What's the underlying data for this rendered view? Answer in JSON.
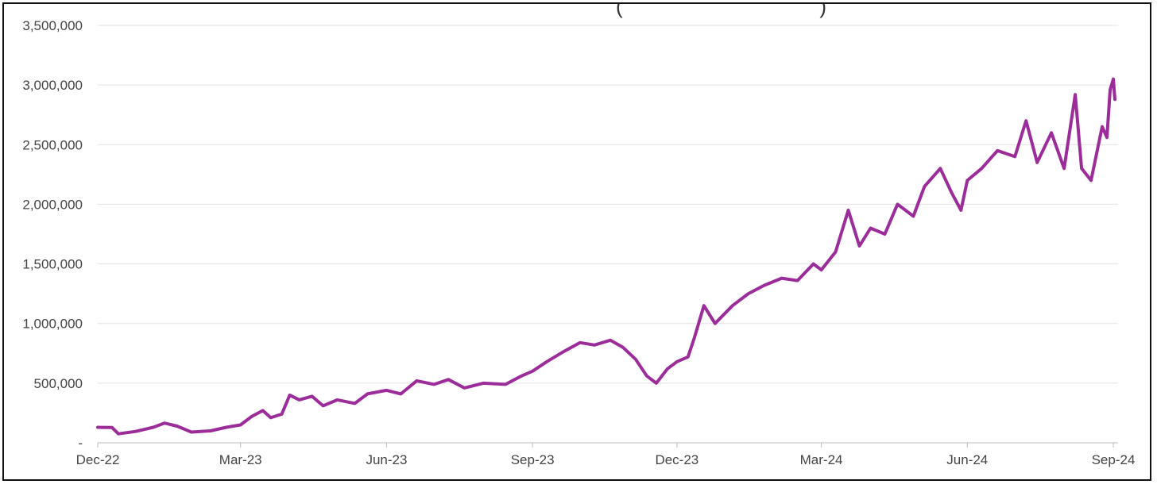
{
  "chart_data": {
    "type": "line",
    "title": "",
    "title_fragment": "(                              )",
    "xlabel": "",
    "ylabel": "",
    "ylim": [
      0,
      3500000
    ],
    "grid": true,
    "legend": "none",
    "line_color": "#9B2C9A",
    "y_ticks": [
      {
        "value": 3500000,
        "label": "3,500,000"
      },
      {
        "value": 3000000,
        "label": "3,000,000"
      },
      {
        "value": 2500000,
        "label": "2,500,000"
      },
      {
        "value": 2000000,
        "label": "2,000,000"
      },
      {
        "value": 1500000,
        "label": "1,500,000"
      },
      {
        "value": 1000000,
        "label": "1,000,000"
      },
      {
        "value": 500000,
        "label": "500,000"
      },
      {
        "value": 0,
        "label": "-"
      }
    ],
    "x_ticks": [
      {
        "date": "2022-12-01",
        "label": "Dec-22"
      },
      {
        "date": "2023-03-01",
        "label": "Mar-23"
      },
      {
        "date": "2023-06-01",
        "label": "Jun-23"
      },
      {
        "date": "2023-09-01",
        "label": "Sep-23"
      },
      {
        "date": "2023-12-01",
        "label": "Dec-23"
      },
      {
        "date": "2024-03-01",
        "label": "Mar-24"
      },
      {
        "date": "2024-06-01",
        "label": "Jun-24"
      },
      {
        "date": "2024-09-01",
        "label": "Sep-24"
      }
    ],
    "series": [
      {
        "points": [
          [
            "2022-12-01",
            130000
          ],
          [
            "2022-12-10",
            128000
          ],
          [
            "2022-12-14",
            75000
          ],
          [
            "2022-12-25",
            95000
          ],
          [
            "2023-01-05",
            130000
          ],
          [
            "2023-01-12",
            165000
          ],
          [
            "2023-01-20",
            140000
          ],
          [
            "2023-01-29",
            90000
          ],
          [
            "2023-02-10",
            100000
          ],
          [
            "2023-02-20",
            130000
          ],
          [
            "2023-03-01",
            150000
          ],
          [
            "2023-03-08",
            220000
          ],
          [
            "2023-03-15",
            270000
          ],
          [
            "2023-03-20",
            210000
          ],
          [
            "2023-03-27",
            240000
          ],
          [
            "2023-04-01",
            400000
          ],
          [
            "2023-04-07",
            360000
          ],
          [
            "2023-04-15",
            390000
          ],
          [
            "2023-04-22",
            310000
          ],
          [
            "2023-05-01",
            360000
          ],
          [
            "2023-05-12",
            330000
          ],
          [
            "2023-05-20",
            410000
          ],
          [
            "2023-06-01",
            440000
          ],
          [
            "2023-06-10",
            410000
          ],
          [
            "2023-06-20",
            520000
          ],
          [
            "2023-07-01",
            490000
          ],
          [
            "2023-07-10",
            530000
          ],
          [
            "2023-07-20",
            460000
          ],
          [
            "2023-08-01",
            500000
          ],
          [
            "2023-08-15",
            490000
          ],
          [
            "2023-08-25",
            560000
          ],
          [
            "2023-09-01",
            600000
          ],
          [
            "2023-09-10",
            680000
          ],
          [
            "2023-09-20",
            760000
          ],
          [
            "2023-10-01",
            840000
          ],
          [
            "2023-10-10",
            820000
          ],
          [
            "2023-10-20",
            860000
          ],
          [
            "2023-10-28",
            800000
          ],
          [
            "2023-11-05",
            700000
          ],
          [
            "2023-11-12",
            560000
          ],
          [
            "2023-11-18",
            500000
          ],
          [
            "2023-11-25",
            620000
          ],
          [
            "2023-12-01",
            680000
          ],
          [
            "2023-12-08",
            720000
          ],
          [
            "2023-12-12",
            880000
          ],
          [
            "2023-12-18",
            1150000
          ],
          [
            "2023-12-25",
            1000000
          ],
          [
            "2024-01-05",
            1150000
          ],
          [
            "2024-01-15",
            1250000
          ],
          [
            "2024-01-25",
            1320000
          ],
          [
            "2024-02-05",
            1380000
          ],
          [
            "2024-02-15",
            1360000
          ],
          [
            "2024-02-25",
            1500000
          ],
          [
            "2024-03-01",
            1450000
          ],
          [
            "2024-03-10",
            1600000
          ],
          [
            "2024-03-18",
            1950000
          ],
          [
            "2024-03-25",
            1650000
          ],
          [
            "2024-04-01",
            1800000
          ],
          [
            "2024-04-10",
            1750000
          ],
          [
            "2024-04-18",
            2000000
          ],
          [
            "2024-04-28",
            1900000
          ],
          [
            "2024-05-05",
            2150000
          ],
          [
            "2024-05-15",
            2300000
          ],
          [
            "2024-05-22",
            2100000
          ],
          [
            "2024-05-28",
            1950000
          ],
          [
            "2024-06-01",
            2200000
          ],
          [
            "2024-06-10",
            2300000
          ],
          [
            "2024-06-20",
            2450000
          ],
          [
            "2024-07-01",
            2400000
          ],
          [
            "2024-07-08",
            2700000
          ],
          [
            "2024-07-15",
            2350000
          ],
          [
            "2024-07-24",
            2600000
          ],
          [
            "2024-08-01",
            2300000
          ],
          [
            "2024-08-08",
            2920000
          ],
          [
            "2024-08-12",
            2300000
          ],
          [
            "2024-08-18",
            2200000
          ],
          [
            "2024-08-25",
            2650000
          ],
          [
            "2024-08-28",
            2560000
          ],
          [
            "2024-08-30",
            2960000
          ],
          [
            "2024-09-01",
            3050000
          ],
          [
            "2024-09-02",
            2880000
          ]
        ]
      }
    ]
  }
}
